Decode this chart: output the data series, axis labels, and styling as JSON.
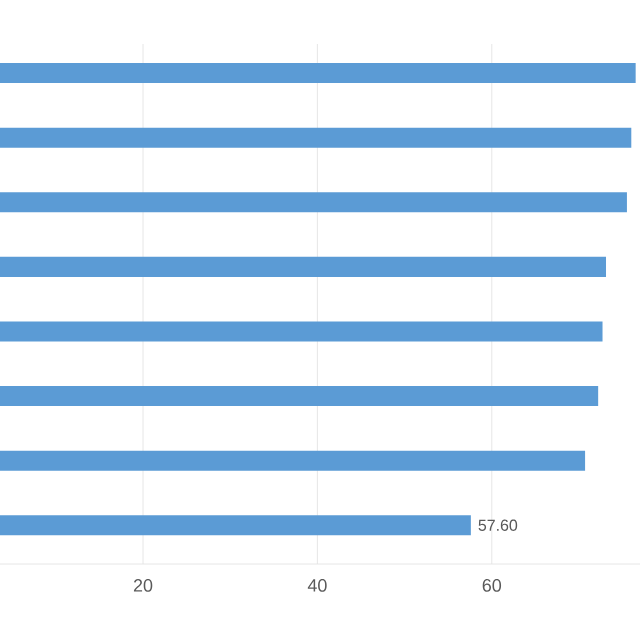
{
  "chart_data": {
    "type": "bar",
    "orientation": "horizontal",
    "categories": [
      null,
      null,
      null,
      null,
      null,
      null,
      null,
      null
    ],
    "values": [
      76.5,
      76,
      75.5,
      73.1,
      72.7,
      72.2,
      70.7,
      57.6
    ],
    "value_labels": [
      null,
      null,
      null,
      null,
      null,
      null,
      null,
      "57.60"
    ],
    "color": "#5b9bd5",
    "xlim": [
      3.6,
      77
    ],
    "xticks": [
      20,
      40,
      60
    ],
    "grid": "x"
  }
}
